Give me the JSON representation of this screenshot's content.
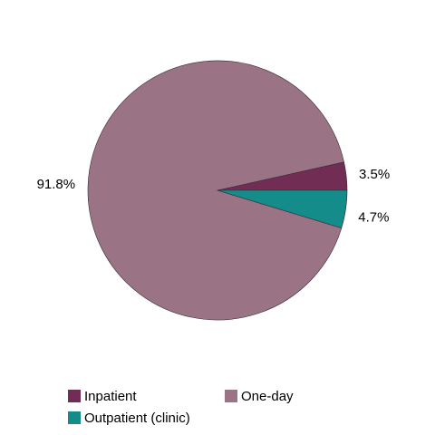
{
  "chart_data": {
    "type": "pie",
    "series": [
      {
        "name": "Inpatient",
        "color": "#722d55",
        "values": [
          3.5
        ],
        "value_labels": [
          "3.5%"
        ]
      },
      {
        "name": "Outpatient (clinic)",
        "color": "#138c8a",
        "values": [
          4.7
        ],
        "value_labels": [
          "4.7%"
        ]
      },
      {
        "name": "One-day",
        "color": "#9a7384",
        "values": [
          91.8
        ],
        "value_labels": [
          "91.8%"
        ]
      }
    ]
  }
}
